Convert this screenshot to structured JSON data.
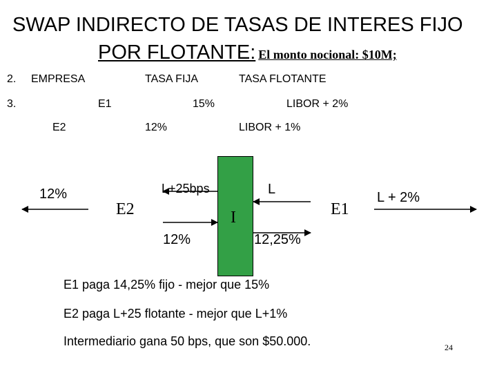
{
  "title": {
    "line1": "SWAP INDIRECTO DE TASAS DE INTERES FIJO",
    "line2": "POR FLOTANTE:",
    "note": "El monto nocional: $10M;"
  },
  "table": {
    "row2": {
      "num": "2.",
      "col1": "EMPRESA",
      "col2": "TASA FIJA",
      "col3": "TASA FLOTANTE"
    },
    "row3": {
      "num": "3.",
      "col1": "E1",
      "col2": "15%",
      "col3": "LIBOR + 2%"
    },
    "row4": {
      "col1": "E2",
      "col2": "12%",
      "col3": "LIBOR + 1%"
    }
  },
  "diagram": {
    "left_rate": "12%",
    "e2": "E2",
    "intermediary": "I",
    "e1": "E1",
    "right_rate": "L + 2%",
    "l25": "L+25bps",
    "e2_to_i": "12%",
    "l": "L",
    "i_to_e1": "12,25%",
    "box_color": "#33a046"
  },
  "conclusions": [
    "E1 paga 14,25% fijo - mejor que 15%",
    "E2 paga L+25 flotante - mejor que L+1%",
    "Intermediario gana 50 bps, que son $50.000."
  ],
  "page_number": "24"
}
